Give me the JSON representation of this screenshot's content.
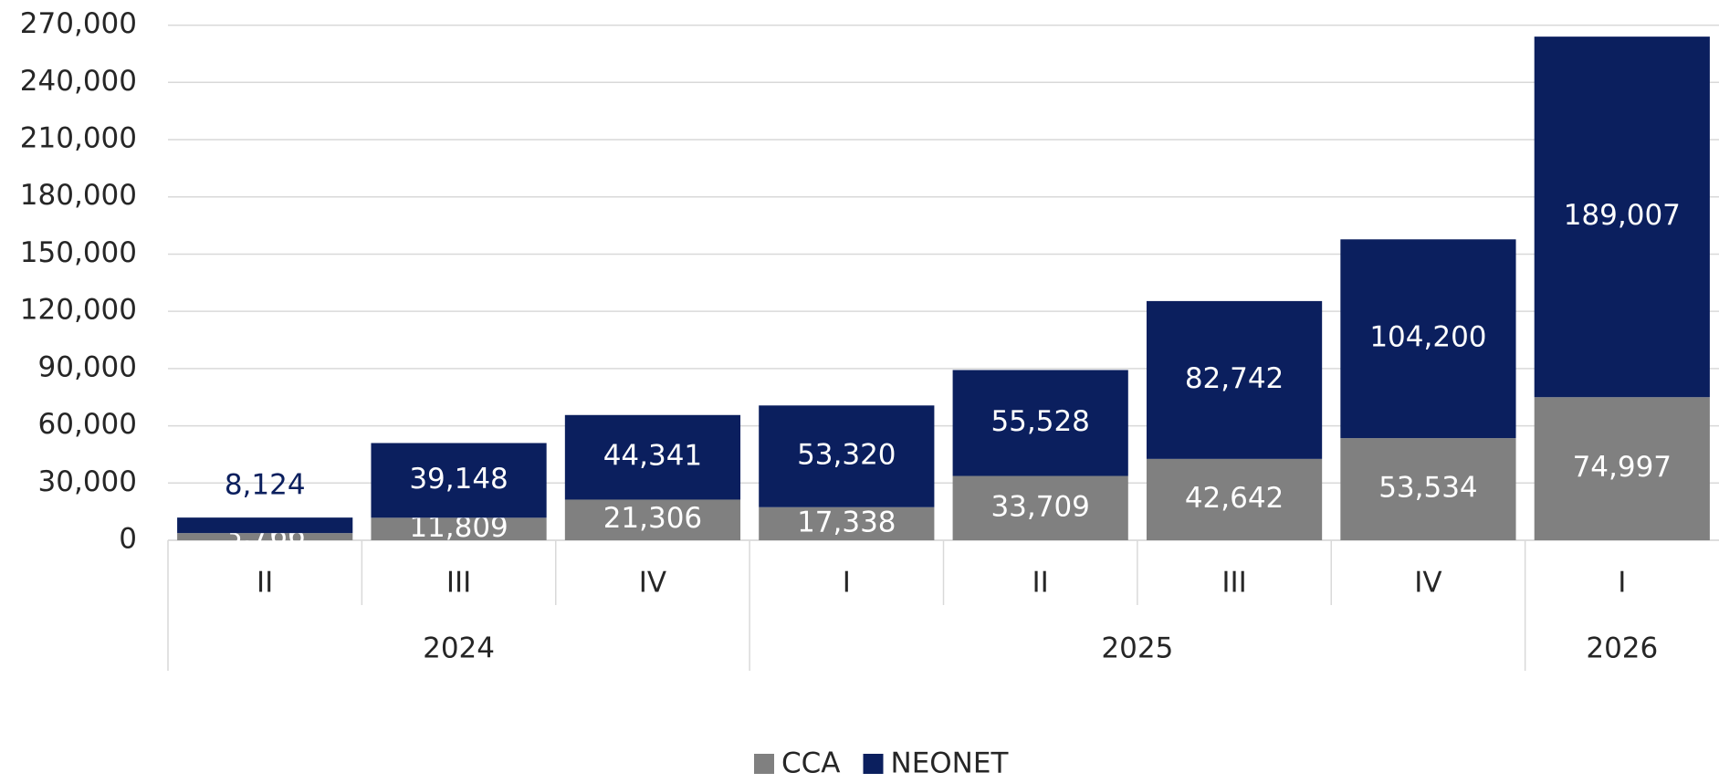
{
  "chart_data": {
    "type": "stacked_bar",
    "groups": [
      {
        "label": "2024",
        "categories": [
          "II",
          "III",
          "IV"
        ]
      },
      {
        "label": "2025",
        "categories": [
          "I",
          "II",
          "III",
          "IV"
        ]
      },
      {
        "label": "2026",
        "categories": [
          "I"
        ]
      }
    ],
    "series": [
      {
        "name": "CCA",
        "color": "#808080",
        "values": [
          3766,
          11809,
          21306,
          17338,
          33709,
          42642,
          53534,
          74997
        ],
        "value_labels": [
          "3,766",
          "11,809",
          "21,306",
          "17,338",
          "33,709",
          "42,642",
          "53,534",
          "74,997"
        ]
      },
      {
        "name": "NEONET",
        "color": "#0b1f5e",
        "values": [
          8124,
          39148,
          44341,
          53320,
          55528,
          82742,
          104200,
          189007
        ],
        "value_labels": [
          "8,124",
          "39,148",
          "44,341",
          "53,320",
          "55,528",
          "82,742",
          "104,200",
          "189,007"
        ]
      }
    ],
    "ylim": [
      0,
      270000
    ],
    "yticks": [
      0,
      {
        "value": 30000,
        "label": "30,000"
      },
      {
        "value": 60000,
        "label": "60,000"
      },
      {
        "value": 90000,
        "label": "90,000"
      },
      {
        "value": 120000,
        "label": "120,000"
      },
      {
        "value": 150000,
        "label": "150,000"
      },
      {
        "value": 180000,
        "label": "180,000"
      },
      {
        "value": 210000,
        "label": "210,000"
      },
      {
        "value": 240000,
        "label": "240,000"
      },
      {
        "value": 270000,
        "label": "270,000"
      }
    ],
    "grid": true,
    "legend": "bottom"
  }
}
